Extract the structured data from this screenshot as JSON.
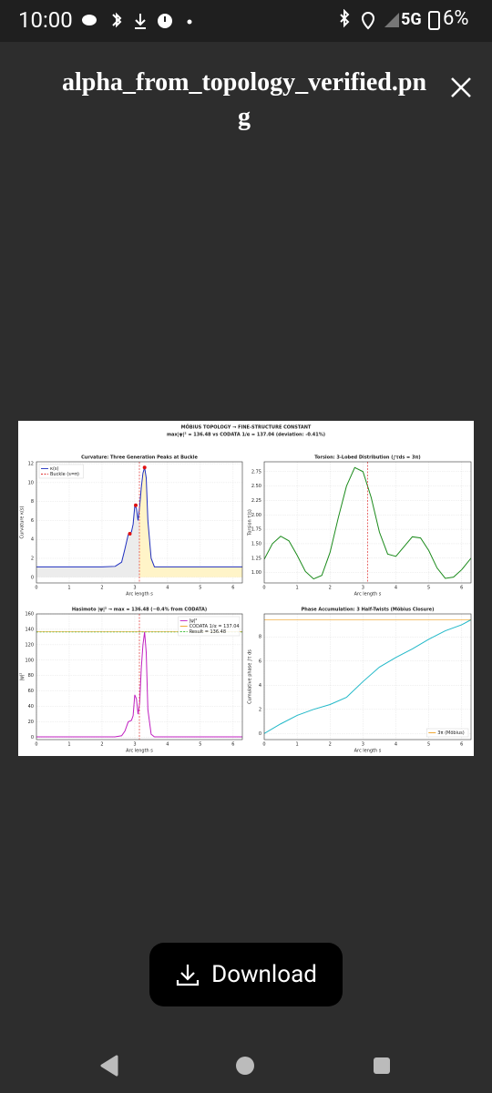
{
  "status_bar": {
    "time": "10:00",
    "network": "5G",
    "battery": "6%"
  },
  "header": {
    "title": "alpha_from_topology_verified.png"
  },
  "image": {
    "title": [
      "MÖBIUS TOPOLOGY → FINE-STRUCTURE CONSTANT",
      "max|ψ|² = 136.48  vs  CODATA 1/α = 137.04  (deviation: -0.41%)"
    ],
    "chart_data": [
      {
        "type": "line",
        "title": "Curvature: Three Generation Peaks at Buckle",
        "xlabel": "Arc length s",
        "ylabel": "Curvature κ(s)",
        "xlim": [
          0,
          6.2832
        ],
        "xticks": [
          0,
          1,
          2,
          3,
          4,
          5,
          6
        ],
        "ylim": [
          -0.6,
          12.2
        ],
        "yticks": [
          0,
          2,
          4,
          6,
          8,
          10,
          12
        ],
        "grid": true,
        "legend": "upper left",
        "fill_colors": [
          "#ececec",
          "#fff4c8"
        ],
        "series": [
          {
            "name": "κ(s)",
            "color": "#1f2fbf",
            "x": [
              0,
              0.5,
              1,
              1.5,
              2,
              2.4,
              2.6,
              2.7,
              2.8,
              2.9,
              2.95,
              3.0,
              3.05,
              3.1,
              3.15,
              3.2,
              3.25,
              3.3,
              3.35,
              3.4,
              3.5,
              3.6,
              4,
              5,
              6.2832
            ],
            "values": [
              1.1,
              1.1,
              1.1,
              1.1,
              1.1,
              1.15,
              1.6,
              3.0,
              4.5,
              4.8,
              5.6,
              7.5,
              7.3,
              6.0,
              7.5,
              9.5,
              11.0,
              11.6,
              10.5,
              6.0,
              2.0,
              1.1,
              1.1,
              1.1,
              1.1
            ]
          },
          {
            "color": "#e01010",
            "marker": true,
            "x": [
              2.85,
              3.03,
              3.3
            ],
            "values": [
              4.6,
              7.6,
              11.6
            ]
          }
        ],
        "reference_lines": [
          {
            "orientation": "vertical",
            "value": 3.1416,
            "color": "#e03030",
            "dash": true,
            "name": "Buckle (s=π)"
          }
        ]
      },
      {
        "type": "line",
        "title": "Torsion: 3-Lobed Distribution (∫τds = 3π)",
        "xlabel": "Arc length s",
        "ylabel": "Torsion τ(s)",
        "xlim": [
          0,
          6.2832
        ],
        "xticks": [
          0,
          1,
          2,
          3,
          4,
          5,
          6
        ],
        "ylim": [
          0.82,
          2.92
        ],
        "yticks": [
          {
            "value": 1,
            "label": "1.00"
          },
          {
            "value": 1.25,
            "label": "1.25"
          },
          {
            "value": 1.5,
            "label": "1.50"
          },
          {
            "value": 1.75,
            "label": "1.75"
          },
          {
            "value": 2,
            "label": "2.00"
          },
          {
            "value": 2.25,
            "label": "2.25"
          },
          {
            "value": 2.5,
            "label": "2.50"
          },
          {
            "value": 2.75,
            "label": "2.75"
          }
        ],
        "grid": true,
        "series": [
          {
            "color": "#1a8a1a",
            "x": [
              0,
              0.25,
              0.5,
              0.75,
              1,
              1.25,
              1.5,
              1.75,
              2,
              2.25,
              2.5,
              2.75,
              3,
              3.25,
              3.5,
              3.75,
              4,
              4.25,
              4.5,
              4.75,
              5,
              5.25,
              5.5,
              5.75,
              6,
              6.2832
            ],
            "values": [
              1.23,
              1.5,
              1.63,
              1.55,
              1.3,
              1.02,
              0.89,
              0.95,
              1.35,
              1.95,
              2.5,
              2.82,
              2.75,
              2.3,
              1.7,
              1.32,
              1.28,
              1.45,
              1.62,
              1.6,
              1.38,
              1.08,
              0.9,
              0.92,
              1.05,
              1.25
            ]
          }
        ],
        "reference_lines": [
          {
            "orientation": "vertical",
            "value": 3.1416,
            "color": "#e03030",
            "dash": true
          }
        ]
      },
      {
        "type": "line",
        "title": "Hasimoto |ψ|² → max = 136.48 (−0.4% from CODATA)",
        "xlabel": "Arc length s",
        "ylabel": "|ψ|²",
        "xlim": [
          0,
          6.2832
        ],
        "xticks": [
          0,
          1,
          2,
          3,
          4,
          5,
          6
        ],
        "ylim": [
          -3,
          160
        ],
        "yticks": [
          0,
          20,
          40,
          60,
          80,
          100,
          120,
          140,
          160
        ],
        "grid": true,
        "legend": "upper right",
        "series": [
          {
            "name": "|ψ|²",
            "color": "#c020c0",
            "x": [
              0,
              0.5,
              1,
              1.5,
              2,
              2.4,
              2.6,
              2.7,
              2.8,
              2.9,
              2.95,
              3.0,
              3.05,
              3.1,
              3.15,
              3.2,
              3.25,
              3.3,
              3.35,
              3.4,
              3.5,
              3.6,
              4,
              5,
              6.2832
            ],
            "values": [
              0.5,
              0.5,
              0.5,
              0.5,
              0.5,
              0.6,
              2,
              8,
              20,
              22,
              28,
              55,
              50,
              30,
              45,
              90,
              120,
              136.48,
              110,
              36,
              4,
              0.5,
              0.5,
              0.5,
              0.5
            ]
          }
        ],
        "reference_lines": [
          {
            "orientation": "horizontal",
            "value": 137.04,
            "color": "#f0a020",
            "name": "CODATA 1/α = 137.04"
          },
          {
            "orientation": "horizontal",
            "value": 136.48,
            "color": "#40c040",
            "dash": true,
            "name": "Result = 136.48"
          },
          {
            "orientation": "vertical",
            "value": 3.1416,
            "color": "#e03030",
            "dash": true
          }
        ]
      },
      {
        "type": "line",
        "title": "Phase Accumulation: 3 Half-Twists (Möbius Closure)",
        "xlabel": "Arc length s",
        "ylabel": "Cumulative phase ∫τ ds",
        "xlim": [
          0,
          6.2832
        ],
        "xticks": [
          0,
          1,
          2,
          3,
          4,
          5,
          6
        ],
        "ylim": [
          -0.5,
          9.9
        ],
        "yticks": [
          0,
          2,
          4,
          6,
          8
        ],
        "grid": true,
        "legend": "lower right",
        "series": [
          {
            "color": "#20b8c8",
            "x": [
              0,
              0.5,
              1,
              1.5,
              2,
              2.5,
              3,
              3.5,
              4,
              4.5,
              5,
              5.5,
              6,
              6.2832
            ],
            "values": [
              0,
              0.8,
              1.5,
              2.0,
              2.4,
              3.0,
              4.3,
              5.5,
              6.3,
              7.0,
              7.8,
              8.5,
              9.0,
              9.42
            ]
          }
        ],
        "reference_lines": [
          {
            "orientation": "horizontal",
            "value": 9.4248,
            "color": "#f0a020",
            "name": "3π (Möbius)"
          }
        ]
      }
    ]
  },
  "download_button": {
    "label": "Download"
  }
}
